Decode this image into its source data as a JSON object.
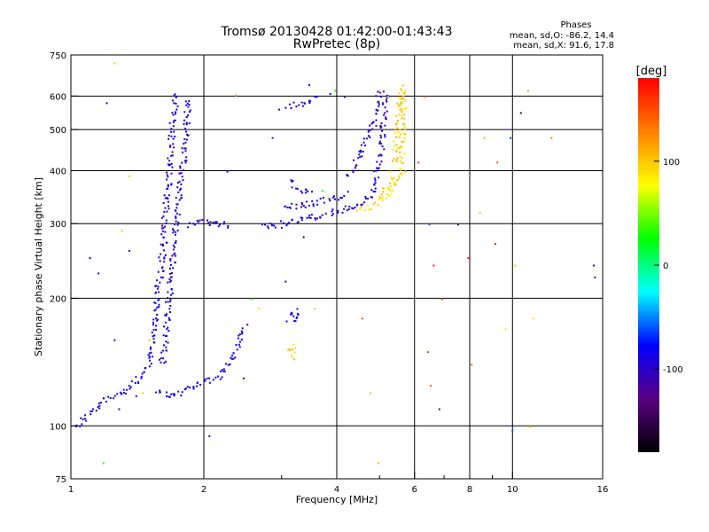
{
  "chart_data": {
    "type": "scatter",
    "title": "Tromsø 20130428 01:42:00-01:43:43",
    "subtitle": "RwPretec (8p)",
    "xlabel": "Frequency [MHz]",
    "ylabel": "Stationary phase Virtual Height [km]",
    "x_scale": "log",
    "y_scale": "log",
    "xlim": [
      1,
      16
    ],
    "ylim": [
      75,
      750
    ],
    "x_ticks": [
      1,
      2,
      4,
      6,
      8,
      10,
      16
    ],
    "x_tick_labels": [
      "1",
      "2",
      "4",
      "6",
      "8",
      "10",
      "16"
    ],
    "x_minor_ticks": [
      3,
      5,
      7,
      9
    ],
    "x_grid": [
      2,
      4,
      6,
      8,
      10
    ],
    "y_ticks": [
      75,
      100,
      200,
      300,
      400,
      500,
      600,
      750
    ],
    "y_tick_labels": [
      "75",
      "100",
      "200",
      "300",
      "400",
      "500",
      "600",
      "750"
    ],
    "y_grid": [
      100,
      200,
      300,
      400,
      500,
      600
    ],
    "grid": true,
    "stats": {
      "title": "Phases",
      "line_o": "mean, sd,O: -86.2, 14.4",
      "line_x": "mean, sd,X:  91.6, 17.8"
    },
    "colorbar": {
      "label": "[deg]",
      "range": [
        -180,
        180
      ],
      "ticks": [
        100,
        0,
        -100
      ],
      "tick_labels": [
        "100",
        "0",
        "-100"
      ]
    },
    "color_scale_stops": [
      "#000000",
      "#5a0082",
      "#0000ff",
      "#00ffff",
      "#00ff00",
      "#ffff00",
      "#ff8000",
      "#ff0000"
    ],
    "traces": [
      {
        "phase": -90,
        "points": [
          [
            1.02,
            100
          ],
          [
            1.05,
            103
          ],
          [
            1.08,
            106
          ],
          [
            1.12,
            109
          ],
          [
            1.15,
            112
          ],
          [
            1.2,
            116
          ],
          [
            1.25,
            118
          ],
          [
            1.3,
            121
          ],
          [
            1.35,
            124
          ],
          [
            1.4,
            128
          ],
          [
            1.45,
            133
          ],
          [
            1.5,
            140
          ],
          [
            1.52,
            152
          ],
          [
            1.53,
            170
          ],
          [
            1.55,
            190
          ],
          [
            1.57,
            215
          ],
          [
            1.6,
            245
          ],
          [
            1.62,
            280
          ],
          [
            1.63,
            320
          ],
          [
            1.65,
            360
          ],
          [
            1.67,
            410
          ],
          [
            1.68,
            470
          ],
          [
            1.7,
            540
          ],
          [
            1.72,
            620
          ]
        ]
      },
      {
        "phase": -92,
        "points": [
          [
            1.6,
            140
          ],
          [
            1.63,
            160
          ],
          [
            1.65,
            190
          ],
          [
            1.68,
            220
          ],
          [
            1.7,
            260
          ],
          [
            1.73,
            300
          ],
          [
            1.75,
            350
          ],
          [
            1.78,
            400
          ],
          [
            1.8,
            460
          ],
          [
            1.82,
            520
          ],
          [
            1.84,
            600
          ]
        ]
      },
      {
        "phase": -95,
        "points": [
          [
            1.85,
            300
          ],
          [
            1.9,
            303
          ],
          [
            1.95,
            305
          ],
          [
            2.0,
            305
          ],
          [
            2.05,
            303
          ],
          [
            2.1,
            302
          ],
          [
            2.2,
            300
          ],
          [
            2.3,
            299
          ]
        ]
      },
      {
        "phase": -88,
        "points": [
          [
            1.55,
            122
          ],
          [
            1.6,
            120
          ],
          [
            1.65,
            119
          ],
          [
            1.7,
            119
          ],
          [
            1.75,
            120
          ],
          [
            1.8,
            122
          ],
          [
            1.85,
            124
          ],
          [
            1.9,
            126
          ],
          [
            1.95,
            127
          ],
          [
            2.0,
            128
          ],
          [
            2.05,
            128
          ],
          [
            2.1,
            129
          ],
          [
            2.15,
            130
          ],
          [
            2.2,
            134
          ],
          [
            2.25,
            138
          ],
          [
            2.3,
            145
          ],
          [
            2.35,
            152
          ],
          [
            2.4,
            160
          ],
          [
            2.45,
            168
          ],
          [
            2.5,
            175
          ]
        ]
      },
      {
        "phase": -93,
        "points": [
          [
            2.7,
            295
          ],
          [
            2.9,
            298
          ],
          [
            3.1,
            303
          ],
          [
            3.3,
            308
          ],
          [
            3.5,
            312
          ],
          [
            3.7,
            316
          ],
          [
            3.9,
            320
          ],
          [
            4.1,
            325
          ],
          [
            4.3,
            330
          ],
          [
            4.5,
            336
          ],
          [
            4.7,
            345
          ],
          [
            4.8,
            360
          ],
          [
            4.9,
            390
          ],
          [
            5.0,
            430
          ],
          [
            5.05,
            480
          ],
          [
            5.1,
            540
          ],
          [
            5.15,
            620
          ]
        ]
      },
      {
        "phase": -90,
        "points": [
          [
            3.0,
            330
          ],
          [
            3.2,
            332
          ],
          [
            3.4,
            335
          ],
          [
            3.6,
            338
          ],
          [
            3.8,
            342
          ],
          [
            4.0,
            348
          ],
          [
            4.2,
            355
          ]
        ]
      },
      {
        "phase": -95,
        "points": [
          [
            4.2,
            390
          ],
          [
            4.4,
            420
          ],
          [
            4.6,
            460
          ],
          [
            4.8,
            510
          ],
          [
            4.9,
            560
          ],
          [
            5.0,
            620
          ]
        ]
      },
      {
        "phase": 90,
        "points": [
          [
            4.4,
            325
          ],
          [
            4.6,
            328
          ],
          [
            4.8,
            333
          ],
          [
            5.0,
            340
          ],
          [
            5.2,
            350
          ],
          [
            5.3,
            370
          ],
          [
            5.35,
            400
          ]
        ]
      },
      {
        "phase": 95,
        "points": [
          [
            5.0,
            350
          ],
          [
            5.2,
            365
          ],
          [
            5.4,
            380
          ],
          [
            5.55,
            400
          ],
          [
            5.6,
            440
          ],
          [
            5.62,
            500
          ],
          [
            5.63,
            560
          ],
          [
            5.65,
            630
          ]
        ]
      },
      {
        "phase": 98,
        "points": [
          [
            5.4,
            420
          ],
          [
            5.45,
            470
          ],
          [
            5.5,
            530
          ],
          [
            5.55,
            590
          ],
          [
            5.58,
            640
          ]
        ]
      },
      {
        "phase": -90,
        "points": [
          [
            3.1,
            380
          ],
          [
            3.2,
            372
          ],
          [
            3.3,
            360
          ],
          [
            3.4,
            355
          ],
          [
            3.5,
            352
          ]
        ]
      },
      {
        "phase": -92,
        "points": [
          [
            3.1,
            180
          ],
          [
            3.15,
            185
          ],
          [
            3.2,
            178
          ],
          [
            3.25,
            190
          ]
        ]
      },
      {
        "phase": 100,
        "points": [
          [
            3.1,
            150
          ],
          [
            3.15,
            155
          ],
          [
            3.2,
            148
          ],
          [
            3.25,
            145
          ]
        ]
      },
      {
        "phase": -95,
        "points": [
          [
            3.1,
            570
          ],
          [
            3.3,
            580
          ],
          [
            3.5,
            590
          ],
          [
            3.6,
            600
          ]
        ]
      }
    ],
    "scatter_points": [
      [
        1.15,
        230,
        -100
      ],
      [
        1.2,
        580,
        -90
      ],
      [
        1.25,
        160,
        -95
      ],
      [
        1.3,
        290,
        100
      ],
      [
        1.35,
        260,
        -90
      ],
      [
        1.4,
        118,
        -88
      ],
      [
        1.45,
        120,
        95
      ],
      [
        1.25,
        720,
        100
      ],
      [
        1.35,
        390,
        60
      ],
      [
        1.1,
        250,
        -80
      ],
      [
        1.5,
        160,
        110
      ],
      [
        1.18,
        82,
        20
      ],
      [
        1.28,
        110,
        -100
      ],
      [
        2.05,
        95,
        -95
      ],
      [
        2.25,
        400,
        -100
      ],
      [
        2.35,
        605,
        120
      ],
      [
        2.45,
        130,
        -90
      ],
      [
        2.55,
        200,
        30
      ],
      [
        2.65,
        190,
        90
      ],
      [
        2.85,
        480,
        -120
      ],
      [
        2.95,
        560,
        -90
      ],
      [
        3.05,
        220,
        -85
      ],
      [
        3.35,
        280,
        -150
      ],
      [
        3.45,
        640,
        -95
      ],
      [
        3.55,
        190,
        100
      ],
      [
        3.7,
        360,
        20
      ],
      [
        3.85,
        610,
        -92
      ],
      [
        3.95,
        620,
        30
      ],
      [
        4.15,
        600,
        -100
      ],
      [
        4.55,
        180,
        150
      ],
      [
        4.75,
        120,
        100
      ],
      [
        4.95,
        82,
        110
      ],
      [
        5.2,
        600,
        90
      ],
      [
        5.7,
        400,
        100
      ],
      [
        6.1,
        420,
        160
      ],
      [
        6.3,
        600,
        140
      ],
      [
        6.45,
        300,
        -60
      ],
      [
        6.6,
        240,
        170
      ],
      [
        6.8,
        110,
        -100
      ],
      [
        6.9,
        200,
        150
      ],
      [
        7.5,
        300,
        -90
      ],
      [
        8.05,
        140,
        140
      ],
      [
        8.4,
        320,
        100
      ],
      [
        8.6,
        480,
        110
      ],
      [
        9.2,
        420,
        150
      ],
      [
        9.6,
        170,
        70
      ],
      [
        9.85,
        480,
        -60
      ],
      [
        10.1,
        240,
        100
      ],
      [
        10.4,
        550,
        -140
      ],
      [
        10.8,
        620,
        120
      ],
      [
        11.1,
        180,
        90
      ],
      [
        12.2,
        480,
        130
      ],
      [
        15.2,
        240,
        -90
      ],
      [
        15.3,
        225,
        -100
      ],
      [
        10.9,
        100,
        110
      ],
      [
        9.95,
        98,
        -60
      ],
      [
        9.1,
        270,
        170
      ],
      [
        6.4,
        150,
        160
      ],
      [
        7.9,
        250,
        160
      ],
      [
        6.5,
        125,
        140
      ]
    ]
  }
}
